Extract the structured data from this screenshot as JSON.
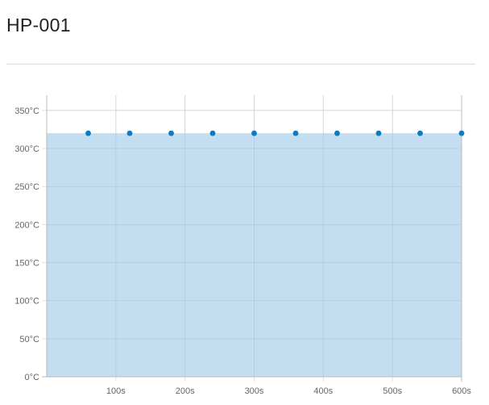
{
  "header": {
    "title": "HP-001"
  },
  "colors": {
    "area_fill": "#bedcf0",
    "point": "#0b7bc2",
    "grid": "#e2e2e2",
    "axis_text": "#666666"
  },
  "chart_data": {
    "type": "area",
    "title": "",
    "xlabel": "",
    "ylabel": "",
    "x": [
      60,
      120,
      180,
      240,
      300,
      360,
      420,
      480,
      540,
      600
    ],
    "series": [
      {
        "values": [
          320,
          320,
          320,
          320,
          320,
          320,
          320,
          320,
          320,
          320
        ]
      }
    ],
    "xlim": [
      0,
      600
    ],
    "ylim": [
      0,
      370
    ],
    "x_ticks": [
      100,
      200,
      300,
      400,
      500,
      600
    ],
    "x_tick_labels": [
      "100s",
      "200s",
      "300s",
      "400s",
      "500s",
      "600s"
    ],
    "y_ticks": [
      0,
      50,
      100,
      150,
      200,
      250,
      300,
      350
    ],
    "y_tick_labels": [
      "0°C",
      "50°C",
      "100°C",
      "150°C",
      "200°C",
      "250°C",
      "300°C",
      "350°C"
    ],
    "grid": true,
    "legend": "none"
  }
}
